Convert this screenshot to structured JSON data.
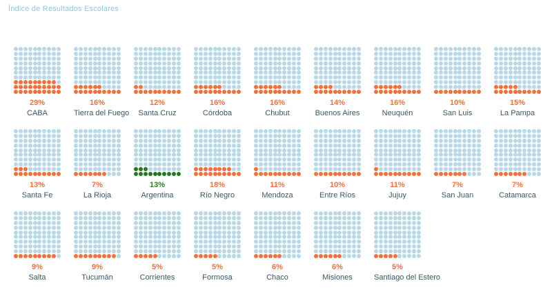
{
  "title": "Índice de Resultados Escolares",
  "colors": {
    "title": "#90c6df",
    "dot_empty": "#b6d8e7",
    "dot_filled": "#f4703b",
    "dot_highlight": "#1f7a1f",
    "percent_label": "#f4703b",
    "percent_label_highlight": "#2f7a1f",
    "name_label": "#3a5664",
    "background": "#ffffff"
  },
  "chart_data": {
    "type": "waffle_small_multiples",
    "title": "Índice de Resultados Escolares",
    "unit": "%",
    "waffle": {
      "rows": 10,
      "cols": 10,
      "total_dots": 100,
      "fill_origin": "bottom-left"
    },
    "legend_position": "none",
    "layout_rows": [
      9,
      9,
      7
    ],
    "groups": [
      [
        {
          "name": "CABA",
          "value": 29,
          "label": "29%",
          "highlight": false
        },
        {
          "name": "Tierra del Fuego",
          "value": 16,
          "label": "16%",
          "highlight": false
        },
        {
          "name": "Santa Cruz",
          "value": 12,
          "label": "12%",
          "highlight": false
        },
        {
          "name": "Córdoba",
          "value": 16,
          "label": "16%",
          "highlight": false
        },
        {
          "name": "Chubut",
          "value": 16,
          "label": "16%",
          "highlight": false
        },
        {
          "name": "Buenos Aires",
          "value": 14,
          "label": "14%",
          "highlight": false
        },
        {
          "name": "Neuquén",
          "value": 16,
          "label": "16%",
          "highlight": false
        },
        {
          "name": "San Luis",
          "value": 10,
          "label": "10%",
          "highlight": false
        },
        {
          "name": "La Pampa",
          "value": 15,
          "label": "15%",
          "highlight": false
        }
      ],
      [
        {
          "name": "Santa Fe",
          "value": 13,
          "label": "13%",
          "highlight": false
        },
        {
          "name": "La Rioja",
          "value": 7,
          "label": "7%",
          "highlight": false
        },
        {
          "name": "Argentina",
          "value": 13,
          "label": "13%",
          "highlight": true
        },
        {
          "name": "Río Negro",
          "value": 18,
          "label": "18%",
          "highlight": false
        },
        {
          "name": "Mendoza",
          "value": 11,
          "label": "11%",
          "highlight": false
        },
        {
          "name": "Entre Ríos",
          "value": 10,
          "label": "10%",
          "highlight": false
        },
        {
          "name": "Jujuy",
          "value": 11,
          "label": "11%",
          "highlight": false
        },
        {
          "name": "San Juan",
          "value": 7,
          "label": "7%",
          "highlight": false
        },
        {
          "name": "Catamarca",
          "value": 7,
          "label": "7%",
          "highlight": false
        }
      ],
      [
        {
          "name": "Salta",
          "value": 9,
          "label": "9%",
          "highlight": false
        },
        {
          "name": "Tucumán",
          "value": 9,
          "label": "9%",
          "highlight": false
        },
        {
          "name": "Corrientes",
          "value": 5,
          "label": "5%",
          "highlight": false
        },
        {
          "name": "Formosa",
          "value": 5,
          "label": "5%",
          "highlight": false
        },
        {
          "name": "Chaco",
          "value": 6,
          "label": "6%",
          "highlight": false
        },
        {
          "name": "Misiones",
          "value": 6,
          "label": "6%",
          "highlight": false
        },
        {
          "name": "Santiago del Estero",
          "value": 5,
          "label": "5%",
          "highlight": false
        }
      ]
    ]
  }
}
